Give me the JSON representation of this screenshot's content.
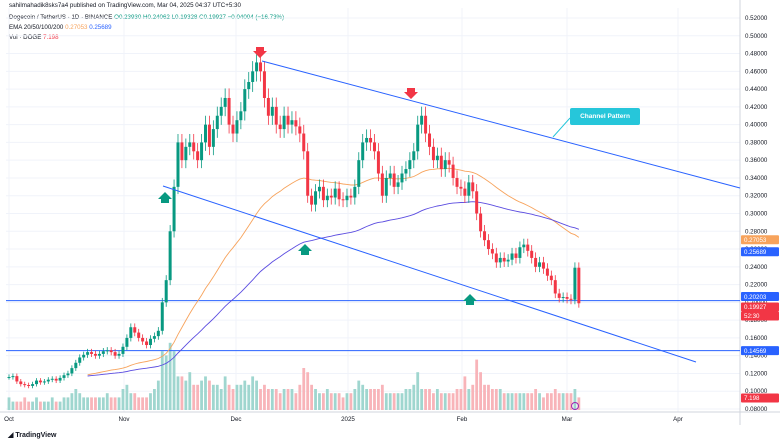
{
  "header": {
    "published": "sahilmahadik8sks7a4 published on TradingView.com, Mar 04, 2025 04:37 UTC+5:30",
    "symbol": "Dogecoin / TetherUS · 1D · BINANCE",
    "ohlc": "O0.23930 H0.24062 L0.19328 C0.19927 −0.04004 (−16.73%)",
    "ema_label": "EMA 20/50/100/200",
    "ema_vals": [
      "0.27053",
      "0.25689"
    ],
    "vol_label": "Vol · DOGE",
    "vol_val": "7.198"
  },
  "annotation": "Channel Pattern",
  "footer": "TradingView",
  "colors": {
    "up": "#089981",
    "down": "#f23645",
    "ema_orange": "#f7a35c",
    "ema_purple": "#5b4ce0",
    "trend": "#2962ff",
    "callout": "#26c6da"
  },
  "chart_data": {
    "type": "candlestick",
    "title": "Dogecoin / TetherUS · 1D · BINANCE",
    "x_ticks": [
      "Oct",
      "Nov",
      "Dec",
      "2025",
      "Feb",
      "Mar",
      "Apr"
    ],
    "y_ticks": [
      "0.52000",
      "0.50000",
      "0.48000",
      "0.46000",
      "0.44000",
      "0.42000",
      "0.40000",
      "0.38000",
      "0.36000",
      "0.34000",
      "0.32000",
      "0.30000",
      "0.28000",
      "0.26000",
      "0.24000",
      "0.22000",
      "0.20000",
      "0.18000",
      "0.16000",
      "0.14000",
      "0.12000",
      "0.10000",
      "0.08000"
    ],
    "ylim": [
      0.08,
      0.52
    ],
    "price_labels": [
      {
        "value": "0.27053",
        "color": "#f7a35c"
      },
      {
        "value": "0.25689",
        "color": "#2962ff"
      },
      {
        "value": "0.20203",
        "color": "#2962ff"
      },
      {
        "value": "0.19927",
        "color": "#f23645"
      },
      {
        "value": "52:30",
        "color": "#f23645"
      },
      {
        "value": "0.14569",
        "color": "#2962ff"
      },
      {
        "value": "7.198",
        "color": "#f23645"
      }
    ],
    "horizontal_levels": [
      0.202,
      0.1457
    ],
    "channel_upper": [
      [
        8,
        0.486
      ],
      [
        151,
        0.326
      ]
    ],
    "channel_lower": [
      [
        20,
        0.33
      ],
      [
        168,
        0.11
      ]
    ],
    "arrows_down_at": [
      [
        8,
        0.49
      ],
      [
        26,
        0.435
      ]
    ],
    "arrows_up_at": [
      [
        18,
        0.262
      ],
      [
        150,
        0.196
      ],
      [
        48,
        0.273
      ]
    ],
    "closes_approx": [
      0.116,
      0.117,
      0.111,
      0.108,
      0.107,
      0.106,
      0.108,
      0.112,
      0.11,
      0.111,
      0.113,
      0.114,
      0.112,
      0.115,
      0.118,
      0.12,
      0.126,
      0.132,
      0.138,
      0.141,
      0.144,
      0.142,
      0.14,
      0.142,
      0.145,
      0.146,
      0.144,
      0.14,
      0.142,
      0.15,
      0.16,
      0.172,
      0.166,
      0.16,
      0.156,
      0.152,
      0.159,
      0.162,
      0.168,
      0.2,
      0.225,
      0.28,
      0.33,
      0.38,
      0.36,
      0.375,
      0.38,
      0.37,
      0.36,
      0.38,
      0.4,
      0.375,
      0.395,
      0.41,
      0.42,
      0.43,
      0.4,
      0.39,
      0.405,
      0.415,
      0.44,
      0.448,
      0.46,
      0.47,
      0.46,
      0.43,
      0.41,
      0.42,
      0.4,
      0.395,
      0.41,
      0.4,
      0.405,
      0.398,
      0.39,
      0.37,
      0.32,
      0.31,
      0.325,
      0.33,
      0.315,
      0.32,
      0.318,
      0.328,
      0.316,
      0.315,
      0.32,
      0.318,
      0.33,
      0.36,
      0.38,
      0.385,
      0.38,
      0.37,
      0.345,
      0.32,
      0.34,
      0.345,
      0.33,
      0.335,
      0.345,
      0.35,
      0.36,
      0.37,
      0.4,
      0.41,
      0.39,
      0.375,
      0.36,
      0.365,
      0.35,
      0.36,
      0.355,
      0.34,
      0.33,
      0.328,
      0.32,
      0.335,
      0.325,
      0.3,
      0.28,
      0.27,
      0.26,
      0.255,
      0.245,
      0.25,
      0.246,
      0.248,
      0.255,
      0.25,
      0.262,
      0.265,
      0.258,
      0.25,
      0.24,
      0.245,
      0.238,
      0.23,
      0.225,
      0.21,
      0.205,
      0.206,
      0.204,
      0.203,
      0.239,
      0.199
    ],
    "volume_approx": [
      3,
      2,
      2,
      2,
      3,
      2,
      2,
      3,
      2,
      2,
      2,
      3,
      2,
      2,
      3,
      3,
      4,
      5,
      4,
      3,
      3,
      3,
      3,
      3,
      3,
      4,
      3,
      3,
      3,
      5,
      6,
      4,
      4,
      3,
      3,
      3,
      4,
      5,
      7,
      14,
      13,
      16,
      14,
      8,
      8,
      7,
      9,
      6,
      6,
      7,
      8,
      7,
      6,
      6,
      5,
      8,
      6,
      5,
      6,
      6,
      7,
      6,
      8,
      7,
      5,
      6,
      5,
      5,
      5,
      4,
      5,
      5,
      5,
      4,
      6,
      10,
      9,
      6,
      5,
      4,
      4,
      5,
      4,
      4,
      4,
      3,
      4,
      4,
      5,
      7,
      6,
      5,
      5,
      5,
      5,
      6,
      4,
      4,
      4,
      4,
      4,
      5,
      5,
      6,
      9,
      5,
      5,
      5,
      4,
      5,
      4,
      4,
      4,
      4,
      5,
      5,
      8,
      5,
      6,
      12,
      9,
      6,
      6,
      5,
      5,
      5,
      4,
      4,
      4,
      4,
      4,
      4,
      4,
      4,
      5,
      4,
      3,
      4,
      4,
      5,
      4,
      4,
      4,
      4,
      5,
      3
    ]
  }
}
